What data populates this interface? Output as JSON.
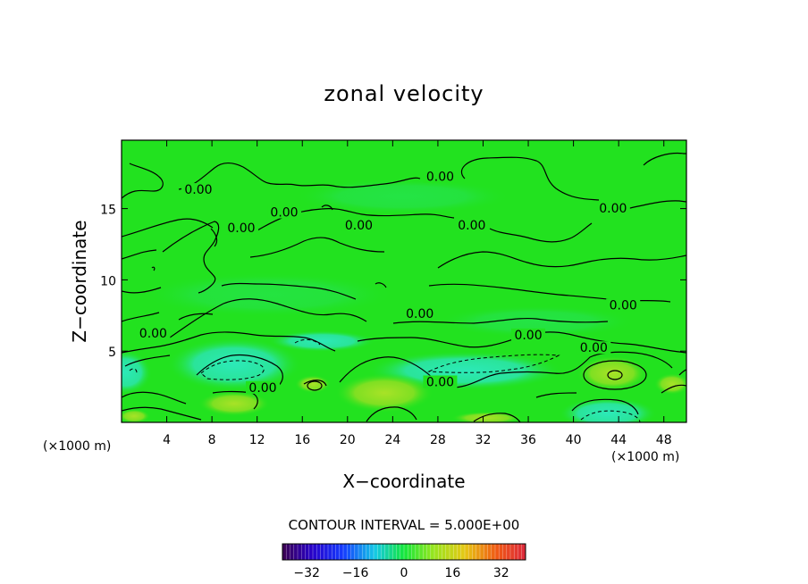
{
  "chart_data": {
    "type": "contour",
    "title": "zonal velocity",
    "xlabel": "X−coordinate",
    "ylabel": "Z−coordinate",
    "x_unit": "(×1000 m)",
    "y_unit": "(×1000 m)",
    "xlim": [
      0,
      50
    ],
    "ylim": [
      0,
      19.8
    ],
    "x_ticks": [
      4,
      8,
      12,
      16,
      20,
      24,
      28,
      32,
      36,
      40,
      44,
      48
    ],
    "x_tick_labels": [
      "4",
      "8",
      "12",
      "16",
      "20",
      "24",
      "28",
      "32",
      "36",
      "40",
      "44",
      "48"
    ],
    "y_ticks": [
      5,
      10,
      15
    ],
    "y_tick_labels": [
      "5",
      "10",
      "15"
    ],
    "contour_interval_text": "CONTOUR INTERVAL = 5.000E+00",
    "contour_labels": [
      {
        "text": "0.00",
        "x": 6.8,
        "z": 16.1
      },
      {
        "text": "0.00",
        "x": 28.2,
        "z": 17.0
      },
      {
        "text": "0.00",
        "x": 14.4,
        "z": 14.5
      },
      {
        "text": "0.00",
        "x": 43.5,
        "z": 14.8
      },
      {
        "text": "0.00",
        "x": 10.6,
        "z": 13.4
      },
      {
        "text": "0.00",
        "x": 21.0,
        "z": 13.6
      },
      {
        "text": "0.00",
        "x": 31.0,
        "z": 13.6
      },
      {
        "text": "0.00",
        "x": 2.8,
        "z": 6.0
      },
      {
        "text": "0.00",
        "x": 26.4,
        "z": 7.4
      },
      {
        "text": "0.00",
        "x": 44.4,
        "z": 8.0
      },
      {
        "text": "0.00",
        "x": 36.0,
        "z": 5.9
      },
      {
        "text": "0.00",
        "x": 41.8,
        "z": 5.0
      },
      {
        "text": "0.00",
        "x": 12.5,
        "z": 2.2
      },
      {
        "text": "0.00",
        "x": 28.2,
        "z": 2.6
      }
    ],
    "colorbar": {
      "range": [
        -40,
        40
      ],
      "ticks": [
        -32,
        -16,
        0,
        16,
        32
      ],
      "tick_labels": [
        "−32",
        "−16",
        "0",
        "16",
        "32"
      ]
    },
    "colors": {
      "background_field": "#22e21f",
      "negative_anomaly": "#2be5a4",
      "positive_anomaly": "#9be024",
      "contour_line": "#000000"
    }
  }
}
